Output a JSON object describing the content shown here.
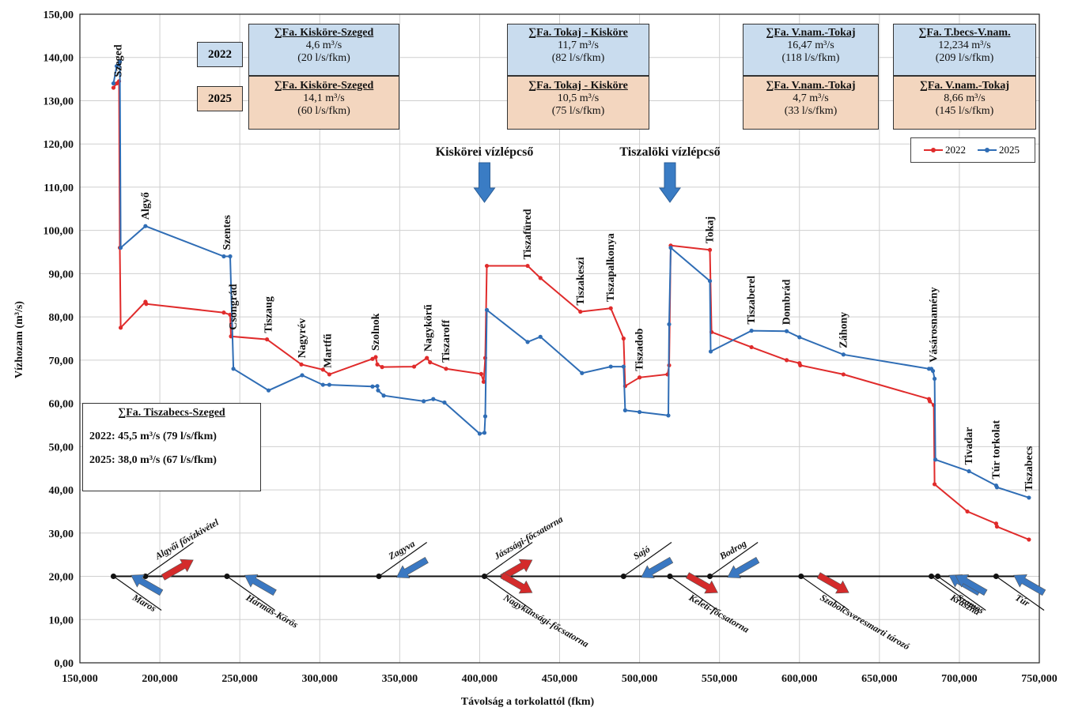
{
  "chart_data": {
    "type": "line",
    "xlabel": "Távolság a torkolattól (fkm)",
    "ylabel": "Vízhozam (m³/s)",
    "xlim": [
      150000,
      750000
    ],
    "ylim": [
      0,
      150
    ],
    "x_ticks": [
      "150,000",
      "200,000",
      "250,000",
      "300,000",
      "350,000",
      "400,000",
      "450,000",
      "500,000",
      "550,000",
      "600,000",
      "650,000",
      "700,000",
      "750,000"
    ],
    "y_ticks": [
      "0,00",
      "10,00",
      "20,00",
      "30,00",
      "40,00",
      "50,00",
      "60,00",
      "70,00",
      "80,00",
      "90,00",
      "100,00",
      "110,00",
      "120,00",
      "130,00",
      "140,00",
      "150,00"
    ],
    "grid": true,
    "legend_position": "top-right",
    "colors": {
      "2022": "#e02b2b",
      "2025": "#2f6db5"
    },
    "series": [
      {
        "name": "2022",
        "points": [
          [
            171000,
            133
          ],
          [
            173000,
            134
          ],
          [
            174500,
            134.5
          ],
          [
            175000,
            96
          ],
          [
            175500,
            77.5
          ],
          [
            191000,
            83.5
          ],
          [
            191500,
            83
          ],
          [
            240000,
            81
          ],
          [
            244000,
            80.5
          ],
          [
            244500,
            75.5
          ],
          [
            267000,
            74.8
          ],
          [
            288500,
            69
          ],
          [
            302000,
            67.8
          ],
          [
            306000,
            66.7
          ],
          [
            333000,
            70.3
          ],
          [
            335000,
            70.7
          ],
          [
            336000,
            69
          ],
          [
            339000,
            68.4
          ],
          [
            359000,
            68.5
          ],
          [
            367000,
            70.5
          ],
          [
            369000,
            69.5
          ],
          [
            379000,
            68
          ],
          [
            401000,
            66.8
          ],
          [
            402500,
            65
          ],
          [
            403500,
            70.5
          ],
          [
            404500,
            91.8
          ],
          [
            430000,
            91.8
          ],
          [
            438000,
            89
          ],
          [
            463000,
            81.2
          ],
          [
            482000,
            82
          ],
          [
            490000,
            75
          ],
          [
            491000,
            64
          ],
          [
            500000,
            66
          ],
          [
            517500,
            66.7
          ],
          [
            518500,
            68.8
          ],
          [
            519500,
            96.5
          ],
          [
            544000,
            95.5
          ],
          [
            545000,
            76.5
          ],
          [
            570000,
            73
          ],
          [
            592000,
            70
          ],
          [
            600000,
            69.3
          ],
          [
            600500,
            68.8
          ],
          [
            627500,
            66.7
          ],
          [
            681000,
            61
          ],
          [
            681500,
            60.5
          ],
          [
            684000,
            59.6
          ],
          [
            684500,
            41.3
          ],
          [
            705000,
            35
          ],
          [
            723000,
            32.2
          ],
          [
            723500,
            31.5
          ],
          [
            743500,
            28.5
          ]
        ]
      },
      {
        "name": "2025",
        "points": [
          [
            171000,
            134
          ],
          [
            173000,
            138
          ],
          [
            175000,
            139
          ],
          [
            175500,
            96
          ],
          [
            191000,
            101
          ],
          [
            240000,
            94
          ],
          [
            244000,
            94
          ],
          [
            246000,
            68
          ],
          [
            268000,
            63
          ],
          [
            289000,
            66.5
          ],
          [
            302000,
            64.3
          ],
          [
            306000,
            64.3
          ],
          [
            333000,
            63.9
          ],
          [
            336000,
            64
          ],
          [
            336500,
            63
          ],
          [
            340000,
            61.8
          ],
          [
            365000,
            60.5
          ],
          [
            371000,
            61
          ],
          [
            378000,
            60.2
          ],
          [
            400000,
            53
          ],
          [
            403000,
            53.2
          ],
          [
            403500,
            57
          ],
          [
            404500,
            81.6
          ],
          [
            430000,
            74.2
          ],
          [
            438000,
            75.4
          ],
          [
            464000,
            67
          ],
          [
            482000,
            68.5
          ],
          [
            490000,
            68.5
          ],
          [
            491000,
            58.4
          ],
          [
            500000,
            58
          ],
          [
            518000,
            57.2
          ],
          [
            518500,
            78.3
          ],
          [
            519500,
            96
          ],
          [
            544000,
            88.3
          ],
          [
            544500,
            72
          ],
          [
            570000,
            76.8
          ],
          [
            592000,
            76.7
          ],
          [
            600000,
            75.3
          ],
          [
            627500,
            71.3
          ],
          [
            681000,
            68
          ],
          [
            682500,
            68
          ],
          [
            683500,
            67.5
          ],
          [
            684500,
            65.7
          ],
          [
            685000,
            47
          ],
          [
            706000,
            44.3
          ],
          [
            723000,
            41
          ],
          [
            723500,
            40.6
          ],
          [
            743500,
            38.2
          ]
        ]
      }
    ],
    "stations": [
      {
        "name": "Szeged",
        "x": 174000,
        "y": 134
      },
      {
        "name": "Algyő",
        "x": 191000,
        "y": 101
      },
      {
        "name": "Szentes",
        "x": 242000,
        "y": 94
      },
      {
        "name": "Csongrád",
        "x": 246000,
        "y": 75.5
      },
      {
        "name": "Tiszaug",
        "x": 268000,
        "y": 74.8
      },
      {
        "name": "Nagyrév",
        "x": 289000,
        "y": 69
      },
      {
        "name": "Martfű",
        "x": 305000,
        "y": 66.7
      },
      {
        "name": "Szolnok",
        "x": 335000,
        "y": 70.7
      },
      {
        "name": "Nagykörű",
        "x": 368000,
        "y": 70.5
      },
      {
        "name": "Tiszaroff",
        "x": 379000,
        "y": 68
      },
      {
        "name": "Tiszafüred",
        "x": 430000,
        "y": 91.8
      },
      {
        "name": "Tiszakeszi",
        "x": 463000,
        "y": 81.2
      },
      {
        "name": "Tiszapalkonya",
        "x": 482000,
        "y": 82
      },
      {
        "name": "Tiszadob",
        "x": 500000,
        "y": 66
      },
      {
        "name": "Tokaj",
        "x": 544000,
        "y": 95.5
      },
      {
        "name": "Tiszaberel",
        "x": 570000,
        "y": 76.8
      },
      {
        "name": "Dombrád",
        "x": 592000,
        "y": 76.7
      },
      {
        "name": "Záhony",
        "x": 627500,
        "y": 71.3
      },
      {
        "name": "Vásárosnamény",
        "x": 684000,
        "y": 68
      },
      {
        "name": "Tivadar",
        "x": 706000,
        "y": 44.3
      },
      {
        "name": "Túr torkolat",
        "x": 723000,
        "y": 41
      },
      {
        "name": "Tiszabecs",
        "x": 743500,
        "y": 38.2
      }
    ],
    "axis_nodes": [
      {
        "x": 171000
      },
      {
        "x": 191000
      },
      {
        "x": 242000
      },
      {
        "x": 337000
      },
      {
        "x": 403000
      },
      {
        "x": 490000
      },
      {
        "x": 519000
      },
      {
        "x": 544000
      },
      {
        "x": 601000
      },
      {
        "x": 682500
      },
      {
        "x": 686500
      },
      {
        "x": 723000
      }
    ],
    "tributaries": [
      {
        "name": "Maros",
        "x": 171000,
        "side": "below",
        "arrow": "inflow",
        "color": "#3a78c2"
      },
      {
        "name": "Algyői fővízkivétel",
        "x": 191000,
        "side": "above",
        "arrow": "outflow",
        "color": "#d42b2b"
      },
      {
        "name": "Hármas-Körös",
        "x": 242000,
        "side": "below",
        "arrow": "inflow",
        "color": "#3a78c2"
      },
      {
        "name": "Zagyva",
        "x": 337000,
        "side": "above",
        "arrow": "inflow",
        "color": "#3a78c2"
      },
      {
        "name": "Jászsági-főcsatorna",
        "x": 403000,
        "side": "above",
        "arrow": "outflow",
        "color": "#d42b2b"
      },
      {
        "name": "Nagykunsági-főcsatorna",
        "x": 403000,
        "side": "below",
        "arrow": "outflow",
        "color": "#d42b2b"
      },
      {
        "name": "Sajó",
        "x": 490000,
        "side": "above",
        "arrow": "inflow",
        "color": "#3a78c2"
      },
      {
        "name": "Keleti-főcsatorna",
        "x": 519000,
        "side": "below",
        "arrow": "outflow",
        "color": "#d42b2b"
      },
      {
        "name": "Bodrog",
        "x": 544000,
        "side": "above",
        "arrow": "inflow",
        "color": "#3a78c2"
      },
      {
        "name": "Szabolcsveresmarti tározó",
        "x": 601000,
        "side": "below",
        "arrow": "outflow",
        "color": "#d42b2b"
      },
      {
        "name": "Kraszna",
        "x": 682500,
        "side": "below",
        "arrow": "inflow",
        "color": "#3a78c2"
      },
      {
        "name": "Szamos",
        "x": 686500,
        "side": "below",
        "arrow": "inflow",
        "color": "#3a78c2"
      },
      {
        "name": "Túr",
        "x": 723000,
        "side": "below",
        "arrow": "inflow",
        "color": "#3a78c2"
      }
    ],
    "dams": [
      {
        "name": "Kiskörei vízlépcső",
        "x": 403000
      },
      {
        "name": "Tiszalöki vízlépcső",
        "x": 519000
      }
    ]
  },
  "info_boxes": {
    "year_2022": "2022",
    "year_2025": "2025",
    "box1": {
      "t2022": "∑Fa. Kisköre-Szeged",
      "q2022": "4,6 m³/s",
      "s2022": "(20 l/s/fkm)",
      "t2025": "∑Fa. Kisköre-Szeged",
      "q2025": "14,1 m³/s",
      "s2025": "(60 l/s/fkm)"
    },
    "box2": {
      "t2022": "∑Fa. Tokaj - Kisköre",
      "q2022": "11,7 m³/s",
      "s2022": "(82 l/s/fkm)",
      "t2025": "∑Fa. Tokaj - Kisköre",
      "q2025": "10,5 m³/s",
      "s2025": "(75 l/s/fkm)"
    },
    "box3": {
      "t2022": "∑Fa. V.nam.-Tokaj",
      "q2022": "16,47 m³/s",
      "s2022": "(118 l/s/fkm)",
      "t2025": "∑Fa. V.nam.-Tokaj",
      "q2025": "4,7 m³/s",
      "s2025": "(33 l/s/fkm)"
    },
    "box4": {
      "t2022": "∑Fa. T.becs-V.nam.",
      "q2022": "12,234 m³/s",
      "s2022": "(209 l/s/fkm)",
      "t2025": "∑Fa. V.nam.-Tokaj",
      "q2025": "8,66 m³/s",
      "s2025": "(145 l/s/fkm)"
    }
  },
  "summary": {
    "title": "∑Fa. Tiszabecs-Szeged",
    "line2022": "2022: 45,5 m³/s (79 l/s/fkm)",
    "line2025": "2025: 38,0 m³/s (67 l/s/fkm)"
  },
  "legend": {
    "s2022": "2022",
    "s2025": "2025"
  }
}
